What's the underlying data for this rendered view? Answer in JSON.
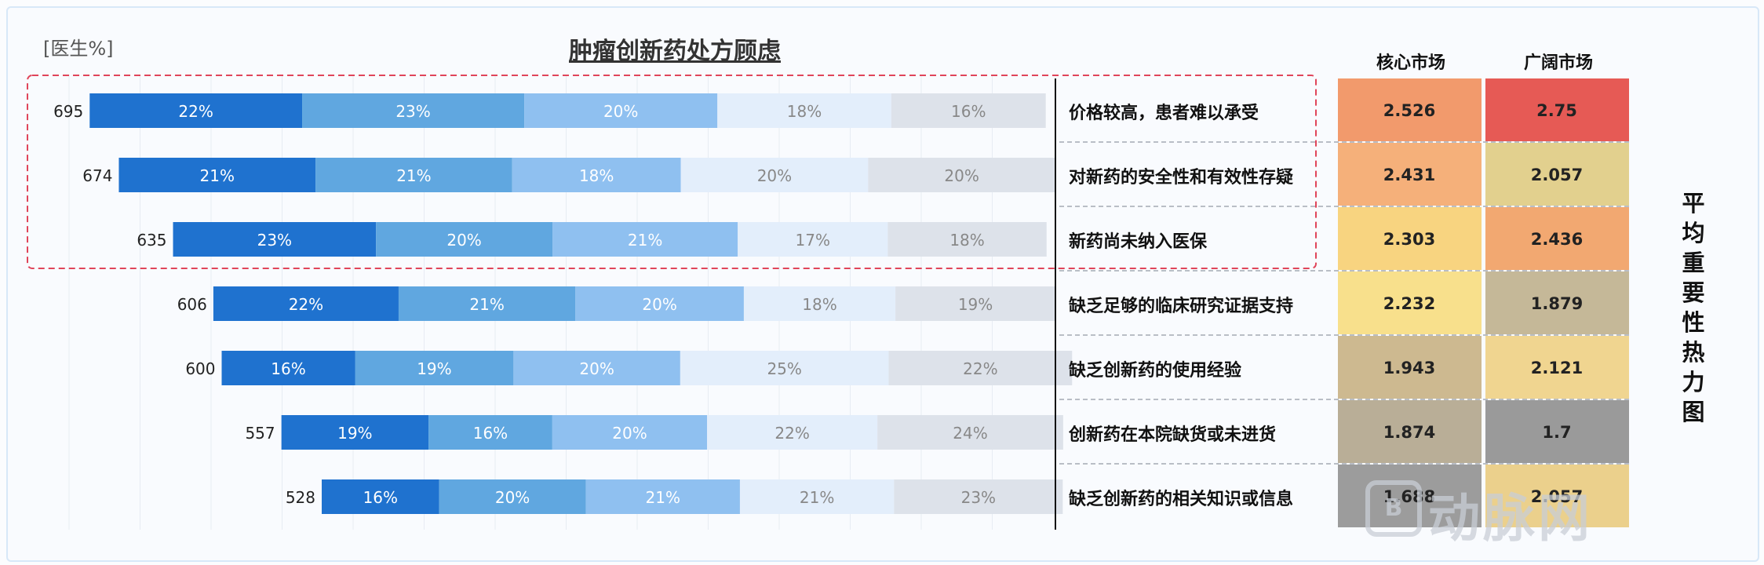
{
  "unit_label": "[医生%]",
  "heatmap": {
    "columns": [
      "核心市场",
      "广阔市场"
    ],
    "side_title": "平均重要性热力图"
  },
  "watermark": "动脉网",
  "colors": {
    "segments": [
      "#1f72cf",
      "#60a7e0",
      "#8fc0f0",
      "#e3eefb",
      "#dde2ea"
    ],
    "segment_text": [
      "#ffffff",
      "#ffffff",
      "#ffffff",
      "#888888",
      "#888888"
    ],
    "highlight_border": "#e0455a",
    "heat_cells": [
      [
        "#f29a6c",
        "#e65a55"
      ],
      [
        "#f5b07a",
        "#e2d08e"
      ],
      [
        "#f8d480",
        "#f2a871"
      ],
      [
        "#f8e08c",
        "#c5b898"
      ],
      [
        "#cdb990",
        "#f0d590"
      ],
      [
        "#b9ae97",
        "#9a9a9a"
      ],
      [
        "#9c9c9c",
        "#ebd08c"
      ]
    ]
  },
  "chart_data": {
    "type": "bar",
    "stacked": true,
    "orientation": "horizontal",
    "title": "肿瘤创新药处方顾虑",
    "categories": [
      "价格较高，患者难以承受",
      "对新药的安全性和有效性存疑",
      "新药尚未纳入医保",
      "缺乏足够的临床研究证据支持",
      "缺乏创新药的使用经验",
      "创新药在本院缺货或未进货",
      "缺乏创新药的相关知识或信息"
    ],
    "totals": [
      695,
      674,
      635,
      606,
      600,
      557,
      528
    ],
    "segments": [
      [
        22,
        23,
        20,
        18,
        16
      ],
      [
        21,
        21,
        18,
        20,
        20
      ],
      [
        23,
        20,
        21,
        17,
        18
      ],
      [
        22,
        21,
        20,
        18,
        19
      ],
      [
        16,
        19,
        20,
        25,
        22
      ],
      [
        19,
        16,
        20,
        22,
        24
      ],
      [
        16,
        20,
        21,
        21,
        23
      ]
    ],
    "highlighted_rows": [
      0,
      1,
      2
    ],
    "heatmap_values": [
      [
        "2.526",
        "2.75"
      ],
      [
        "2.431",
        "2.057"
      ],
      [
        "2.303",
        "2.436"
      ],
      [
        "2.232",
        "1.879"
      ],
      [
        "1.943",
        "2.121"
      ],
      [
        "1.874",
        "1.7"
      ],
      [
        "1.688",
        "2.057"
      ]
    ]
  }
}
